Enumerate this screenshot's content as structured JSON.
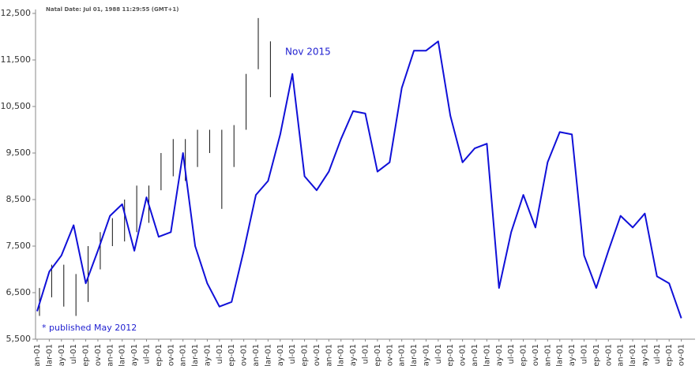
{
  "chart_data": {
    "type": "line",
    "annotations": [
      "Natal Date: Jul 01, 1988 11:29:55 (GMT+1)",
      "Nov 2015",
      "* published May 2012"
    ],
    "categories": [
      "an-01",
      "lar-01",
      "ay-01",
      "ul-01",
      "ep-01",
      "ov-01",
      "an-01",
      "lar-01",
      "ay-01",
      "ul-01",
      "ep-01",
      "ov-01",
      "an-01",
      "lar-01",
      "ay-01",
      "ul-01",
      "ep-01",
      "ov-01",
      "an-01",
      "lar-01",
      "ay-01",
      "ul-01",
      "ep-01",
      "ov-01",
      "an-01",
      "lar-01",
      "ay-01",
      "ul-01",
      "ep-01",
      "ov-01",
      "an-01",
      "lar-01",
      "ay-01",
      "ul-01",
      "ep-01",
      "ov-01",
      "an-01",
      "lar-01",
      "ay-01",
      "ul-01",
      "ep-01",
      "ov-01",
      "an-01",
      "lar-01",
      "ay-01",
      "ul-01",
      "ep-01",
      "ov-01",
      "an-01",
      "lar-01",
      "ay-01",
      "ul-01",
      "ep-01",
      "ov-01"
    ],
    "series": [
      {
        "color": "#1010d8",
        "values": [
          6100,
          6950,
          7300,
          7950,
          6700,
          7400,
          8150,
          8400,
          7400,
          8550,
          7700,
          7800,
          9500,
          7500,
          6700,
          6200,
          6300,
          7400,
          8600,
          8900,
          9900,
          11200,
          9000,
          8700,
          9100,
          9800,
          10400,
          10350,
          9100,
          9300,
          10900,
          11700,
          11700,
          11900,
          10300,
          9300,
          9600,
          9700,
          6600,
          7800,
          8600,
          7900,
          9300,
          9950,
          9900,
          7300,
          6600,
          7400,
          8150,
          7900,
          8200,
          6850,
          6700,
          5950
        ]
      }
    ],
    "ranges": {
      "color": "#111111",
      "low": [
        6000,
        6400,
        6200,
        6000,
        6300,
        7000,
        7500,
        7600,
        7800,
        8000,
        8700,
        9000,
        8900,
        9200,
        9500,
        8300,
        9200,
        10000,
        11300,
        10700,
        null,
        null,
        null,
        null,
        null,
        null,
        null,
        null,
        null,
        null,
        null,
        null,
        null,
        null,
        null,
        null,
        null,
        null,
        null,
        null,
        null,
        null,
        null,
        null,
        null,
        null,
        null,
        null,
        null,
        null,
        null,
        null,
        null,
        null
      ],
      "high": [
        6600,
        7100,
        7100,
        6900,
        7500,
        7800,
        8100,
        8500,
        8800,
        8800,
        9500,
        9800,
        9800,
        10000,
        10000,
        10000,
        10100,
        11200,
        12400,
        11900,
        null,
        null,
        null,
        null,
        null,
        null,
        null,
        null,
        null,
        null,
        null,
        null,
        null,
        null,
        null,
        null,
        null,
        null,
        null,
        null,
        null,
        null,
        null,
        null,
        null,
        null,
        null,
        null,
        null,
        null,
        null,
        null,
        null,
        null
      ]
    },
    "ylim": [
      5500,
      12500
    ],
    "yticks": [
      {
        "value": 5500,
        "label": "5,500"
      },
      {
        "value": 6500,
        "label": "6,500"
      },
      {
        "value": 7500,
        "label": "7,500"
      },
      {
        "value": 8500,
        "label": "8,500"
      },
      {
        "value": 9500,
        "label": "9,500"
      },
      {
        "value": 10500,
        "label": "10,500"
      },
      {
        "value": 11500,
        "label": "11,500"
      },
      {
        "value": 12500,
        "label": "12,500"
      }
    ],
    "grid": false
  }
}
